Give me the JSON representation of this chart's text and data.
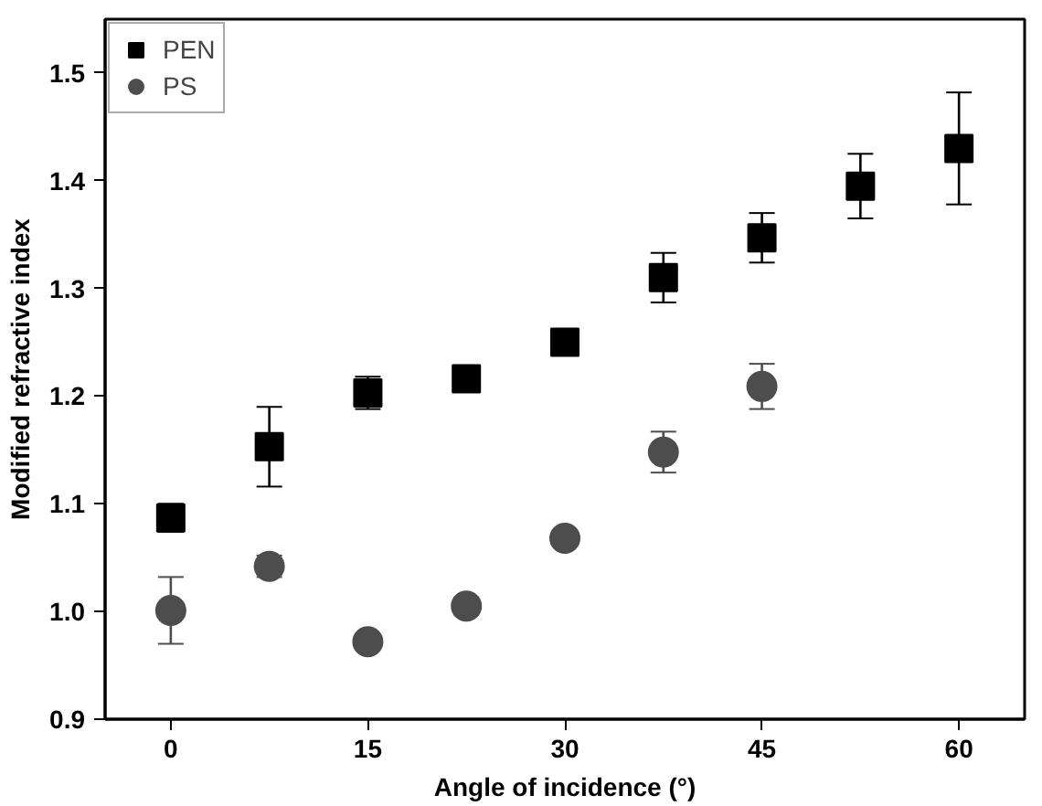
{
  "chart_data": {
    "type": "scatter",
    "xlabel": "Angle of incidence (°)",
    "ylabel": "Modified refractive index",
    "x": [
      0,
      7.5,
      15,
      22.5,
      30,
      37.5,
      45,
      52.5,
      60
    ],
    "series": [
      {
        "name": "PEN",
        "color": "#000000",
        "marker": "square",
        "values": [
          1.087,
          1.153,
          1.203,
          1.216,
          1.25,
          1.31,
          1.347,
          1.395,
          1.43
        ],
        "errors": [
          0.013,
          0.037,
          0.015,
          0.005,
          0.01,
          0.023,
          0.023,
          0.03,
          0.052
        ]
      },
      {
        "name": "PS",
        "color": "#4d4d4d",
        "marker": "circle",
        "values": [
          1.001,
          1.042,
          0.972,
          1.005,
          1.068,
          1.148,
          1.209,
          null,
          null
        ],
        "errors": [
          0.031,
          0.01,
          null,
          0.008,
          0.005,
          0.019,
          0.021,
          null,
          null
        ]
      }
    ],
    "xlim": [
      -5,
      65
    ],
    "ylim": [
      0.9,
      1.55
    ],
    "xticks": [
      0,
      15,
      30,
      45,
      60
    ],
    "yticks": [
      0.9,
      {
        "value": 1,
        "label": "1.0"
      },
      1.1,
      1.2,
      1.3,
      1.4,
      1.5
    ],
    "grid": false,
    "legend": "top left"
  }
}
